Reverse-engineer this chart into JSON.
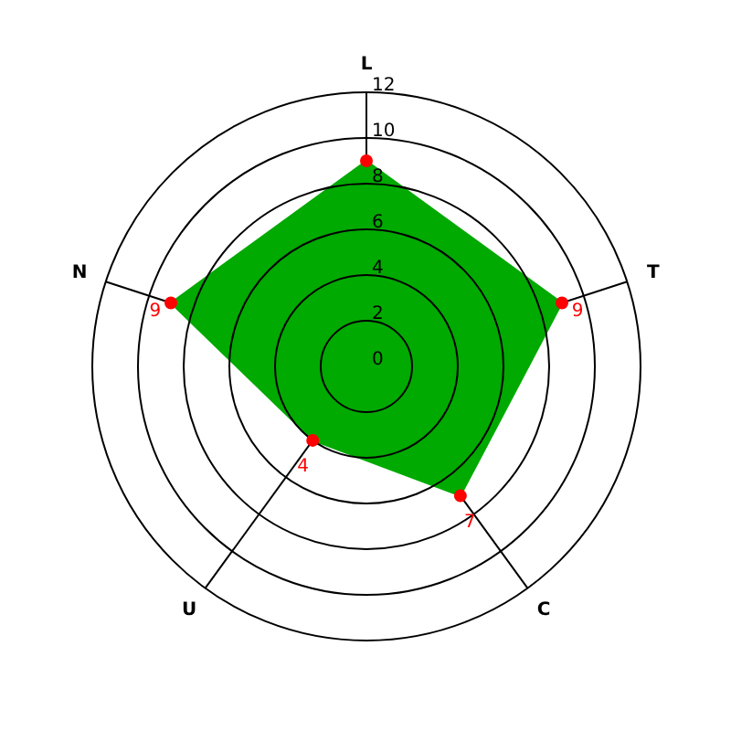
{
  "chart_data": {
    "type": "radar",
    "categories": [
      "L",
      "T",
      "C",
      "U",
      "N"
    ],
    "series": [
      {
        "color": "#00aa00",
        "values": [
          9,
          9,
          7,
          4,
          9
        ]
      }
    ],
    "ylim": [
      0,
      12
    ],
    "yticks": [
      0,
      2,
      4,
      6,
      8,
      10,
      12
    ],
    "value_labels": [
      null,
      "9",
      "7",
      "4",
      "9"
    ],
    "marker": "circle",
    "grid": true
  }
}
